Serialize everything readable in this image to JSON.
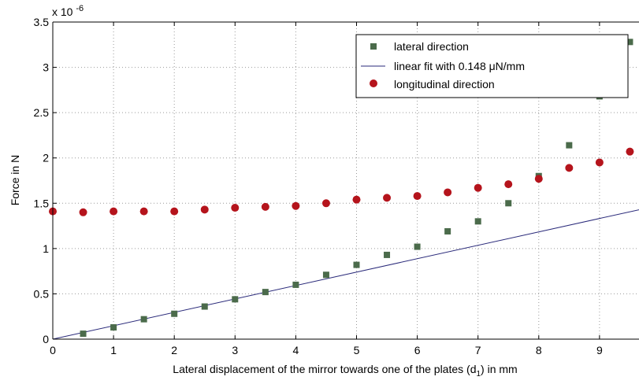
{
  "chart_data": {
    "type": "scatter",
    "xlabel": "Lateral displacement of the mirror towards one of the plates (d",
    "xlabel_sub": "1",
    "xlabel_tail": ") in mm",
    "ylabel": "Force in N",
    "y_multiplier_base": "x 10",
    "y_multiplier_exp": "-6",
    "xlim": [
      0,
      9.65
    ],
    "ylim": [
      0,
      3.5
    ],
    "x_ticks": [
      0,
      1,
      2,
      3,
      4,
      5,
      6,
      7,
      8,
      9
    ],
    "x_tick_labels": [
      "0",
      "1",
      "2",
      "3",
      "4",
      "5",
      "6",
      "7",
      "8",
      "9"
    ],
    "y_ticks": [
      0,
      0.5,
      1,
      1.5,
      2,
      2.5,
      3,
      3.5
    ],
    "y_tick_labels": [
      "0",
      "0.5",
      "1",
      "1.5",
      "2",
      "2.5",
      "3",
      "3.5"
    ],
    "grid": true,
    "legend_position": "top-right",
    "series": [
      {
        "name": "lateral direction",
        "marker": "square",
        "color": "#4b6b4b",
        "x": [
          0.5,
          1,
          1.5,
          2,
          2.5,
          3,
          3.5,
          4,
          4.5,
          5,
          5.5,
          6,
          6.5,
          7,
          7.5,
          8,
          8.5,
          9,
          9.5
        ],
        "y": [
          0.06,
          0.13,
          0.22,
          0.28,
          0.36,
          0.44,
          0.52,
          0.6,
          0.71,
          0.82,
          0.93,
          1.02,
          1.19,
          1.3,
          1.5,
          1.8,
          2.14,
          2.68,
          3.28
        ]
      },
      {
        "name": "linear fit with 0.148 μN/mm",
        "marker": "line",
        "color": "#2a2a7a",
        "slope": 0.148,
        "x": [
          0,
          9.65
        ],
        "y": [
          0,
          1.428
        ]
      },
      {
        "name": "longitudinal direction",
        "marker": "circle",
        "color": "#b5141c",
        "x": [
          0,
          0.5,
          1,
          1.5,
          2,
          2.5,
          3,
          3.5,
          4,
          4.5,
          5,
          5.5,
          6,
          6.5,
          7,
          7.5,
          8,
          8.5,
          9,
          9.5
        ],
        "y": [
          1.41,
          1.4,
          1.41,
          1.41,
          1.41,
          1.43,
          1.45,
          1.46,
          1.47,
          1.5,
          1.54,
          1.56,
          1.58,
          1.62,
          1.67,
          1.71,
          1.77,
          1.89,
          1.95,
          2.07
        ]
      }
    ]
  }
}
